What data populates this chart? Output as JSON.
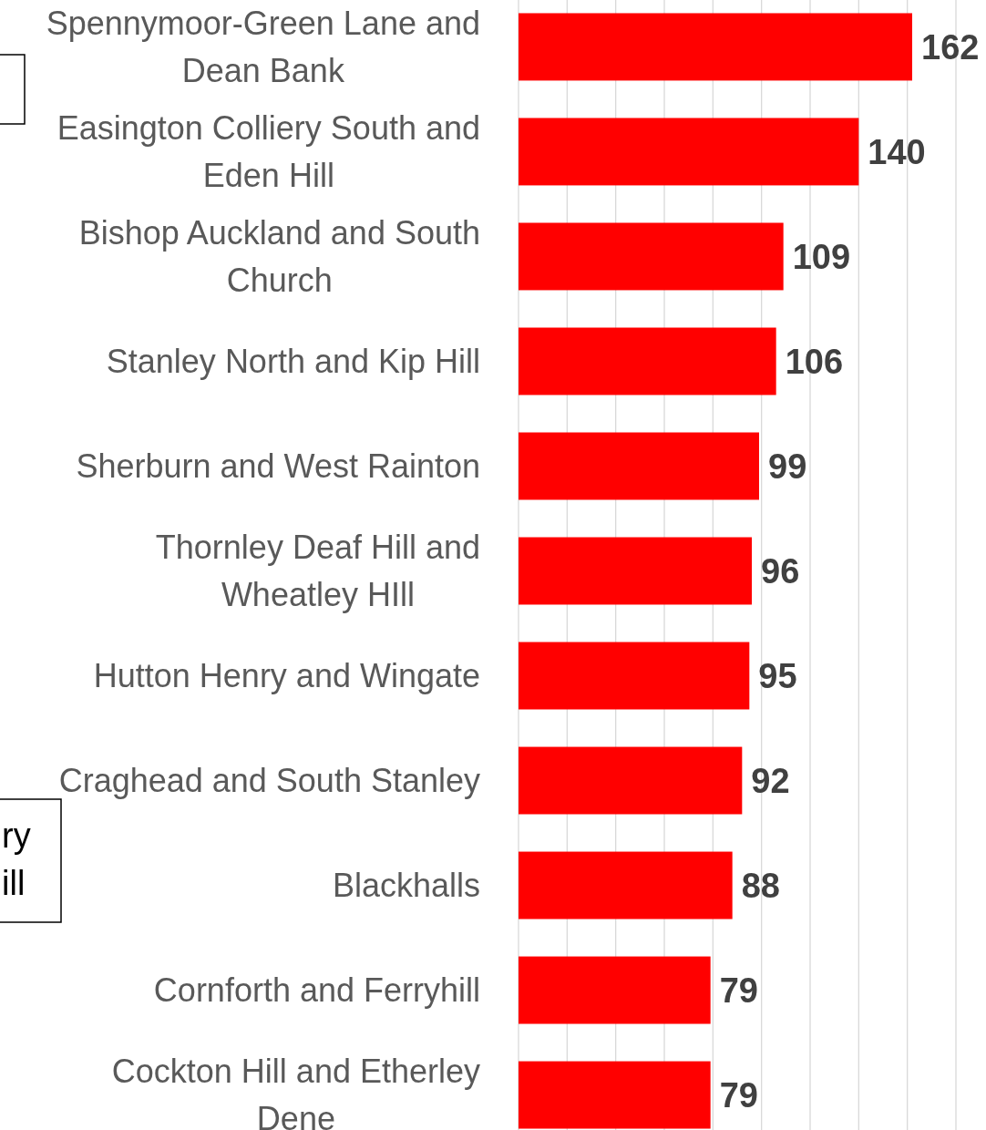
{
  "chart_data": {
    "type": "bar",
    "orientation": "horizontal",
    "categories": [
      "Spennymoor-Green Lane and Dean Bank",
      "Easington Colliery South and Eden Hill",
      "Bishop Auckland and South Church",
      "Stanley North and Kip Hill",
      "Sherburn and West Rainton",
      "Thornley Deaf Hill and Wheatley HIll",
      "Hutton Henry and Wingate",
      "Craghead and South Stanley",
      "Blackhalls",
      "Cornforth and Ferryhill",
      "Cockton Hill and Etherley Dene"
    ],
    "values": [
      162,
      140,
      109,
      106,
      99,
      96,
      95,
      92,
      88,
      79,
      79
    ],
    "color": "#ff0000",
    "data_labels": true,
    "xlim": [
      0,
      180
    ],
    "xticks": [
      {
        "value": 0,
        "label": null
      },
      {
        "value": 20,
        "label": null
      },
      {
        "value": 40,
        "label": null
      },
      {
        "value": 60,
        "label": null
      },
      {
        "value": 80,
        "label": null
      },
      {
        "value": 100,
        "label": null
      },
      {
        "value": 120,
        "label": null
      },
      {
        "value": 140,
        "label": null
      },
      {
        "value": 160,
        "label": null
      },
      {
        "value": 180,
        "label": null
      }
    ],
    "grid": "x",
    "tick_labels": "y",
    "annotations": [
      "ry",
      "ill"
    ]
  }
}
